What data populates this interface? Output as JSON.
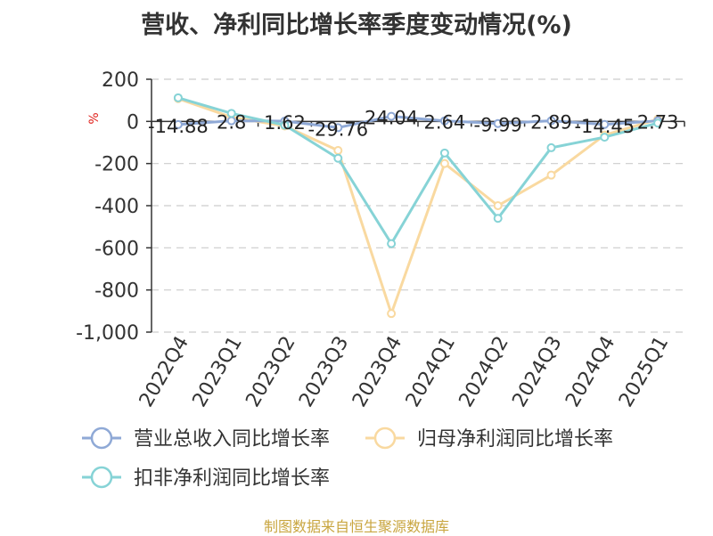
{
  "title": "营收、净利同比增长率季度变动情况(%)",
  "source": "制图数据来自恒生聚源数据库",
  "chart_data": {
    "type": "line",
    "title": "营收、净利同比增长率季度变动情况(%)",
    "unit": "%",
    "categories": [
      "2022Q4",
      "2023Q1",
      "2023Q2",
      "2023Q3",
      "2023Q4",
      "2024Q1",
      "2024Q2",
      "2024Q3",
      "2024Q4",
      "2025Q1"
    ],
    "ylim": [
      -1000,
      200
    ],
    "yticks": [
      200,
      0,
      -200,
      -400,
      -600,
      -800,
      -1000
    ],
    "ytick_labels": [
      "200",
      "0",
      "-200",
      "-400",
      "-600",
      "-800",
      "-1,000"
    ],
    "grid": true,
    "legend_position": "bottom",
    "series": [
      {
        "name": "营业总收入同比增长率",
        "color": "#8fa9d6",
        "values": [
          -14.88,
          2.8,
          1.62,
          -29.76,
          24.04,
          2.64,
          -9.99,
          2.89,
          -14.45,
          2.73
        ],
        "labels": [
          "-14.88",
          "2.8",
          "1.62",
          "-29.76",
          "24.04",
          "2.64",
          "-9.99",
          "2.89",
          "-14.45",
          "2.73"
        ]
      },
      {
        "name": "归母净利润同比增长率",
        "color": "#f9d9a0",
        "values": [
          108,
          20,
          -22,
          -138,
          -912,
          -200,
          -400,
          -255,
          -65,
          10
        ]
      },
      {
        "name": "扣非净利润同比增长率",
        "color": "#86d3d6",
        "values": [
          112,
          38,
          -18,
          -175,
          -580,
          -150,
          -460,
          -125,
          -75,
          -8
        ]
      }
    ]
  }
}
